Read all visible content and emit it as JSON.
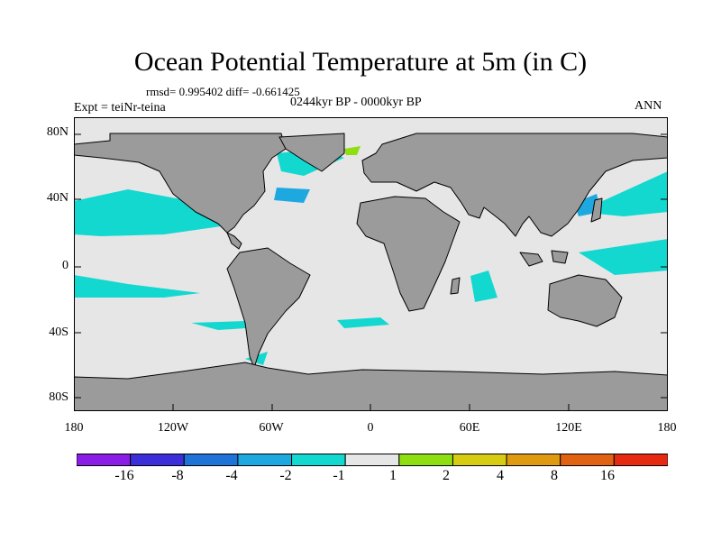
{
  "title": "Ocean Potential Temperature at 5m (in C)",
  "stats": "rmsd= 0.995402 diff= -0.661425",
  "experiment": "Expt = teiNr-teina",
  "period": "0244kyr BP - 0000kyr BP",
  "season": "ANN",
  "axes": {
    "y_ticks": [
      "80N",
      "40N",
      "0",
      "40S",
      "80S"
    ],
    "x_ticks": [
      "180",
      "120W",
      "60W",
      "0",
      "60E",
      "120E",
      "180"
    ]
  },
  "colorbar": {
    "labels": [
      "-16",
      "-8",
      "-4",
      "-2",
      "-1",
      "1",
      "2",
      "4",
      "8",
      "16"
    ],
    "colors": [
      "#8a1ee6",
      "#3a2fd8",
      "#1e72d8",
      "#1ea8e0",
      "#12d8d0",
      "#e6e6e6",
      "#8ede12",
      "#d8cc12",
      "#e09a12",
      "#e06212",
      "#e62a12"
    ]
  },
  "colors": {
    "land": "#9b9b9b",
    "ocean_neutral": "#e6e6e6",
    "cool_cyan": "#12d8d0",
    "cool_blue": "#1ea8e0",
    "warm_green": "#8ede12"
  }
}
